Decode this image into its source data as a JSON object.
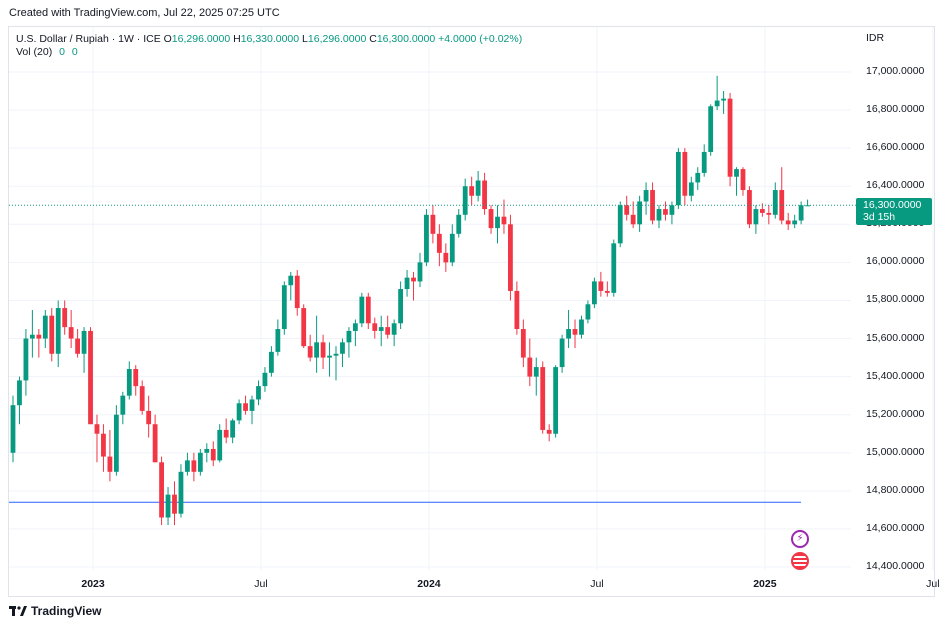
{
  "header": {
    "created": "Created with TradingView.com, Jul 22, 2025 07:25 UTC"
  },
  "legend": {
    "symbol": "U.S. Dollar / Rupiah · 1W · ICE",
    "o_label": "O",
    "o_value": "16,296.0000",
    "h_label": "H",
    "h_value": "16,330.0000",
    "l_label": "L",
    "l_value": "16,296.0000",
    "c_label": "C",
    "c_value": "16,300.0000",
    "change": "+4.0000 (+0.02%)",
    "vol_label": "Vol (20)",
    "vol_values": [
      "0",
      "0"
    ]
  },
  "axis": {
    "currency": "IDR",
    "price_tag_value": "16,300.0000",
    "price_tag_countdown": "3d 15h"
  },
  "footer": {
    "brand": "TradingView"
  },
  "colors": {
    "up": "#089981",
    "down": "#f23645",
    "hline": "#2962ff",
    "grid": "#f0f3fa"
  },
  "icons": [
    "lightning-icon",
    "us-flag-icon",
    "tradingview-logo-icon"
  ],
  "chart_data": {
    "type": "candlestick",
    "interval": "1W",
    "y_ticks": [
      17000,
      16800,
      16600,
      16400,
      16200,
      16000,
      15800,
      15600,
      15400,
      15200,
      15000,
      14800,
      14600,
      14400
    ],
    "y_tick_labels": [
      "17,000.0000",
      "16,800.0000",
      "16,600.0000",
      "16,400.0000",
      "16,200.0000",
      "16,000.0000",
      "15,800.0000",
      "15,600.0000",
      "15,400.0000",
      "15,200.0000",
      "15,000.0000",
      "14,800.0000",
      "14,600.0000",
      "14,400.0000"
    ],
    "ylim": [
      14380,
      17080
    ],
    "x_ticks": [
      {
        "label": "2023",
        "bold": true,
        "week": 11
      },
      {
        "label": "Jul",
        "bold": false,
        "week": 37
      },
      {
        "label": "2024",
        "bold": true,
        "week": 63
      },
      {
        "label": "Jul",
        "bold": false,
        "week": 89
      },
      {
        "label": "2025",
        "bold": true,
        "week": 115
      },
      {
        "label": "Jul",
        "bold": false,
        "week": 141
      }
    ],
    "horizontal_line": 14740,
    "last_price": 16300,
    "candles": [
      [
        15000,
        15300,
        14950,
        15250
      ],
      [
        15250,
        15400,
        15150,
        15380
      ],
      [
        15380,
        15650,
        15300,
        15600
      ],
      [
        15600,
        15750,
        15500,
        15620
      ],
      [
        15620,
        15650,
        15500,
        15600
      ],
      [
        15600,
        15750,
        15550,
        15720
      ],
      [
        15720,
        15760,
        15480,
        15520
      ],
      [
        15520,
        15800,
        15450,
        15760
      ],
      [
        15760,
        15800,
        15620,
        15660
      ],
      [
        15660,
        15750,
        15550,
        15600
      ],
      [
        15600,
        15650,
        15500,
        15520
      ],
      [
        15520,
        15660,
        15420,
        15640
      ],
      [
        15640,
        15660,
        15150,
        15150
      ],
      [
        15150,
        15200,
        14950,
        15100
      ],
      [
        15100,
        15150,
        14900,
        14980
      ],
      [
        14980,
        15120,
        14850,
        14900
      ],
      [
        14900,
        15250,
        14880,
        15200
      ],
      [
        15200,
        15320,
        15150,
        15300
      ],
      [
        15300,
        15480,
        15280,
        15440
      ],
      [
        15440,
        15460,
        15300,
        15350
      ],
      [
        15350,
        15380,
        15200,
        15220
      ],
      [
        15220,
        15300,
        15080,
        15150
      ],
      [
        15150,
        15200,
        14950,
        14950
      ],
      [
        14950,
        14980,
        14620,
        14660
      ],
      [
        14660,
        14820,
        14620,
        14780
      ],
      [
        14780,
        14850,
        14620,
        14680
      ],
      [
        14680,
        14940,
        14660,
        14900
      ],
      [
        14900,
        15000,
        14880,
        14960
      ],
      [
        14960,
        15000,
        14850,
        14900
      ],
      [
        14900,
        15020,
        14880,
        15000
      ],
      [
        15000,
        15050,
        14950,
        15020
      ],
      [
        15020,
        15060,
        14930,
        14960
      ],
      [
        14960,
        15150,
        14950,
        15120
      ],
      [
        15120,
        15180,
        15050,
        15080
      ],
      [
        15080,
        15180,
        15050,
        15170
      ],
      [
        15170,
        15280,
        15150,
        15260
      ],
      [
        15260,
        15300,
        15200,
        15220
      ],
      [
        15220,
        15300,
        15150,
        15280
      ],
      [
        15280,
        15380,
        15250,
        15350
      ],
      [
        15350,
        15450,
        15320,
        15420
      ],
      [
        15420,
        15560,
        15400,
        15530
      ],
      [
        15530,
        15700,
        15510,
        15650
      ],
      [
        15650,
        15900,
        15620,
        15880
      ],
      [
        15880,
        15950,
        15800,
        15930
      ],
      [
        15930,
        15960,
        15720,
        15760
      ],
      [
        15760,
        15780,
        15550,
        15560
      ],
      [
        15560,
        15620,
        15480,
        15500
      ],
      [
        15500,
        15720,
        15420,
        15580
      ],
      [
        15580,
        15620,
        15440,
        15500
      ],
      [
        15500,
        15580,
        15400,
        15510
      ],
      [
        15510,
        15560,
        15380,
        15520
      ],
      [
        15520,
        15600,
        15450,
        15580
      ],
      [
        15580,
        15660,
        15500,
        15640
      ],
      [
        15640,
        15700,
        15560,
        15680
      ],
      [
        15680,
        15840,
        15660,
        15820
      ],
      [
        15820,
        15840,
        15650,
        15680
      ],
      [
        15680,
        15710,
        15600,
        15640
      ],
      [
        15640,
        15720,
        15560,
        15660
      ],
      [
        15660,
        15720,
        15600,
        15620
      ],
      [
        15620,
        15700,
        15560,
        15680
      ],
      [
        15680,
        15900,
        15650,
        15860
      ],
      [
        15860,
        15960,
        15820,
        15920
      ],
      [
        15920,
        15950,
        15800,
        15900
      ],
      [
        15900,
        16050,
        15870,
        16000
      ],
      [
        16000,
        16280,
        15980,
        16250
      ],
      [
        16250,
        16300,
        16100,
        16150
      ],
      [
        16150,
        16200,
        15980,
        16050
      ],
      [
        16050,
        16100,
        15950,
        16000
      ],
      [
        16000,
        16200,
        15980,
        16150
      ],
      [
        16150,
        16280,
        16130,
        16250
      ],
      [
        16250,
        16440,
        16220,
        16400
      ],
      [
        16400,
        16450,
        16300,
        16350
      ],
      [
        16350,
        16480,
        16320,
        16430
      ],
      [
        16430,
        16470,
        16250,
        16280
      ],
      [
        16280,
        16300,
        16150,
        16180
      ],
      [
        16180,
        16300,
        16100,
        16240
      ],
      [
        16240,
        16330,
        16150,
        16200
      ],
      [
        16200,
        16250,
        15800,
        15850
      ],
      [
        15850,
        15900,
        15620,
        15650
      ],
      [
        15650,
        15700,
        15450,
        15500
      ],
      [
        15500,
        15600,
        15350,
        15400
      ],
      [
        15400,
        15500,
        15300,
        15450
      ],
      [
        15450,
        15480,
        15100,
        15120
      ],
      [
        15120,
        15150,
        15060,
        15100
      ],
      [
        15100,
        15460,
        15080,
        15450
      ],
      [
        15450,
        15620,
        15420,
        15600
      ],
      [
        15600,
        15750,
        15550,
        15650
      ],
      [
        15650,
        15700,
        15550,
        15620
      ],
      [
        15620,
        15720,
        15600,
        15700
      ],
      [
        15700,
        15800,
        15680,
        15780
      ],
      [
        15780,
        15920,
        15760,
        15900
      ],
      [
        15900,
        15950,
        15820,
        15850
      ],
      [
        15850,
        15900,
        15820,
        15840
      ],
      [
        15840,
        16120,
        15820,
        16100
      ],
      [
        16100,
        16320,
        16080,
        16300
      ],
      [
        16300,
        16350,
        16220,
        16250
      ],
      [
        16250,
        16320,
        16180,
        16200
      ],
      [
        16200,
        16350,
        16160,
        16320
      ],
      [
        16320,
        16420,
        16250,
        16380
      ],
      [
        16380,
        16420,
        16200,
        16220
      ],
      [
        16220,
        16300,
        16180,
        16280
      ],
      [
        16280,
        16320,
        16220,
        16250
      ],
      [
        16250,
        16320,
        16200,
        16300
      ],
      [
        16300,
        16600,
        16280,
        16580
      ],
      [
        16580,
        16600,
        16300,
        16350
      ],
      [
        16350,
        16450,
        16320,
        16420
      ],
      [
        16420,
        16500,
        16380,
        16470
      ],
      [
        16470,
        16620,
        16450,
        16580
      ],
      [
        16580,
        16830,
        16560,
        16820
      ],
      [
        16820,
        16980,
        16800,
        16850
      ],
      [
        16850,
        16900,
        16780,
        16860
      ],
      [
        16860,
        16890,
        16400,
        16450
      ],
      [
        16450,
        16500,
        16350,
        16490
      ],
      [
        16490,
        16500,
        16350,
        16380
      ],
      [
        16380,
        16400,
        16180,
        16200
      ],
      [
        16200,
        16300,
        16150,
        16280
      ],
      [
        16280,
        16310,
        16240,
        16260
      ],
      [
        16260,
        16300,
        16200,
        16250
      ],
      [
        16250,
        16420,
        16230,
        16380
      ],
      [
        16380,
        16500,
        16200,
        16220
      ],
      [
        16220,
        16260,
        16170,
        16200
      ],
      [
        16200,
        16250,
        16180,
        16220
      ],
      [
        16220,
        16320,
        16200,
        16300
      ],
      [
        16296,
        16330,
        16296,
        16300
      ]
    ]
  }
}
